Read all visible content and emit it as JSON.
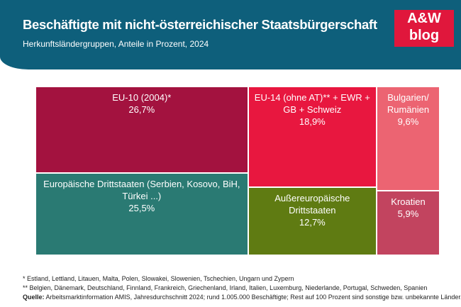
{
  "logo": {
    "top": "A&W",
    "bottom": "blog"
  },
  "chart_data": {
    "type": "treemap",
    "title": "Beschäftigte mit nicht-österreichischer Staatsbürgerschaft",
    "subtitle": "Herkunftsländergruppen, Anteile in Prozent, 2024",
    "categories": [
      "EU-10 (2004)*",
      "Europäische Drittstaaten (Serbien, Kosovo, BiH, Türkei ...)",
      "EU-14 (ohne AT)** + EWR + GB + Schweiz",
      "Außereuropäische Drittstaaten",
      "Bulgarien/ Rumänien",
      "Kroatien"
    ],
    "values": [
      26.7,
      25.5,
      18.9,
      12.7,
      9.6,
      5.9
    ],
    "value_labels": [
      "26,7%",
      "25,5%",
      "18,9%",
      "12,7%",
      "9,6%",
      "5,9%"
    ],
    "colors": [
      "#a3123f",
      "#2a7a73",
      "#e8173f",
      "#5f7b12",
      "#ec6472",
      "#c2445f"
    ],
    "notes": [
      "* Estland, Lettland, Litauen, Malta, Polen, Slowakei, Slowenien, Tschechien, Ungarn und Zypern",
      "** Belgien, Dänemark, Deutschland, Finnland, Frankreich, Griechenland, Irland, Italien, Luxemburg, Niederlande, Portugal, Schweden, Spanien"
    ],
    "source_label": "Quelle:",
    "source": "Arbeitsmarktinformation AMIS, Jahresdurchschnitt 2024; rund 1.005.000 Beschäftigte; Rest auf 100 Prozent sind sonstige bzw. unbekannte Länder."
  }
}
